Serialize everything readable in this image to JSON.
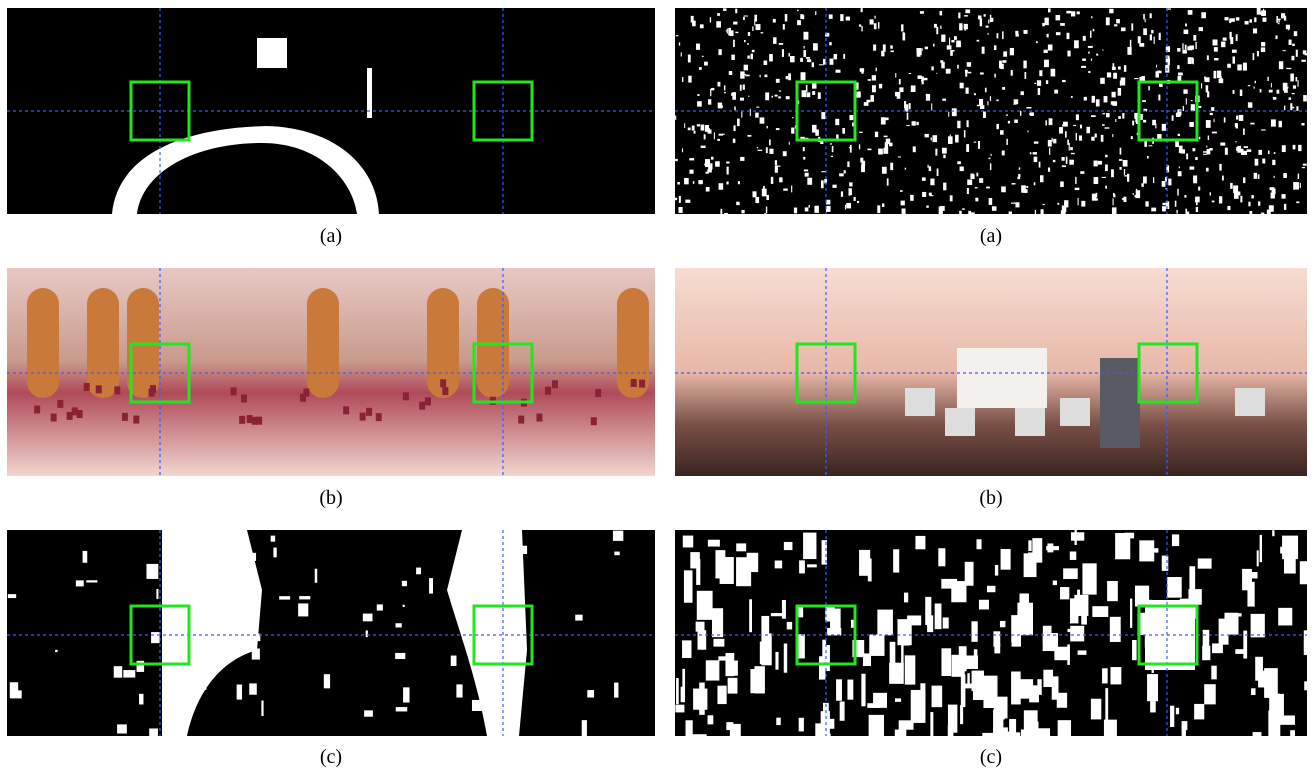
{
  "figure": {
    "panels": [
      {
        "caption": "(a)"
      },
      {
        "caption": "(a)"
      },
      {
        "caption": "(b)"
      },
      {
        "caption": "(b)"
      },
      {
        "caption": "(c)"
      },
      {
        "caption": "(c)"
      }
    ]
  }
}
